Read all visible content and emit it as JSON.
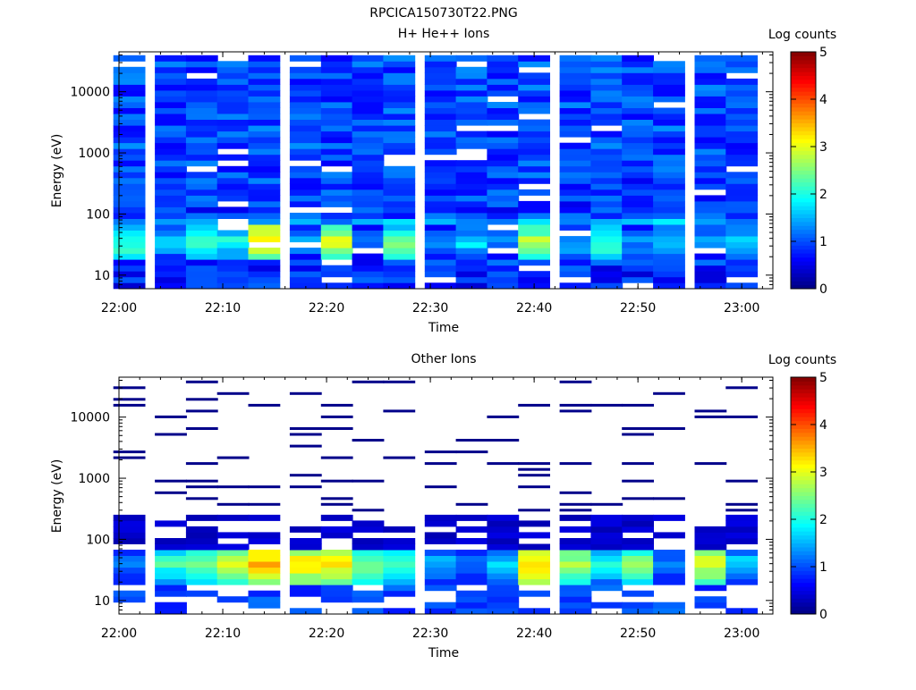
{
  "filename": "RPCICA150730T22.PNG",
  "chart_data": [
    {
      "type": "heatmap",
      "title": "H+ He++ Ions",
      "xlabel": "Time",
      "ylabel": "Energy (eV)",
      "colorbar_label": "Log counts",
      "yscale": "log",
      "ylim": [
        6,
        45000
      ],
      "xlim": [
        "22:00",
        "23:03"
      ],
      "xticks": [
        "22:00",
        "22:10",
        "22:20",
        "22:30",
        "22:40",
        "22:50",
        "23:00"
      ],
      "yticks": [
        "10",
        "100",
        "1000",
        "10000"
      ],
      "colorbar_range": [
        0,
        5
      ],
      "colorbar_ticks": [
        "0",
        "1",
        "2",
        "3",
        "4",
        "5"
      ],
      "time_columns": [
        "22:01",
        "22:05",
        "22:08",
        "22:11",
        "22:14",
        "22:18",
        "22:21",
        "22:24",
        "22:27",
        "22:31",
        "22:34",
        "22:37",
        "22:40",
        "22:44",
        "22:47",
        "22:50",
        "22:53",
        "22:57",
        "23:00"
      ],
      "energy_profile": [
        {
          "energy_eV": 10,
          "log_counts": 0.8
        },
        {
          "energy_eV": 18,
          "log_counts": 0.9
        },
        {
          "energy_eV": 30,
          "log_counts": 2.3
        },
        {
          "energy_eV": 45,
          "log_counts": 2.6
        },
        {
          "energy_eV": 100,
          "log_counts": 0.9
        },
        {
          "energy_eV": 1000,
          "log_counts": 1.0
        },
        {
          "energy_eV": 10000,
          "log_counts": 1.0
        }
      ],
      "peak_intensity_by_column": [
        2.3,
        1.6,
        2.2,
        2.0,
        3.2,
        1.4,
        3.0,
        1.4,
        2.4,
        1.4,
        1.8,
        1.4,
        2.8,
        1.6,
        2.2,
        1.4,
        1.8,
        1.4,
        1.8
      ]
    },
    {
      "type": "heatmap",
      "title": "Other Ions",
      "xlabel": "Time",
      "ylabel": "Energy (eV)",
      "colorbar_label": "Log counts",
      "yscale": "log",
      "ylim": [
        6,
        45000
      ],
      "xlim": [
        "22:00",
        "23:03"
      ],
      "xticks": [
        "22:00",
        "22:10",
        "22:20",
        "22:30",
        "22:40",
        "22:50",
        "23:00"
      ],
      "yticks": [
        "10",
        "100",
        "1000",
        "10000"
      ],
      "colorbar_range": [
        0,
        5
      ],
      "colorbar_ticks": [
        "0",
        "1",
        "2",
        "3",
        "4",
        "5"
      ],
      "time_columns": [
        "22:01",
        "22:05",
        "22:08",
        "22:11",
        "22:14",
        "22:18",
        "22:21",
        "22:24",
        "22:27",
        "22:31",
        "22:34",
        "22:37",
        "22:40",
        "22:44",
        "22:47",
        "22:50",
        "22:53",
        "22:57",
        "23:00"
      ],
      "energy_profile": [
        {
          "energy_eV": 10,
          "log_counts": 0.3
        },
        {
          "energy_eV": 30,
          "log_counts": 2.0
        },
        {
          "energy_eV": 45,
          "log_counts": 3.0
        },
        {
          "energy_eV": 100,
          "log_counts": 0.2
        },
        {
          "energy_eV": 1000,
          "log_counts": 0.0
        }
      ],
      "peak_intensity_by_column": [
        1.4,
        2.2,
        2.4,
        3.0,
        3.5,
        3.3,
        3.3,
        2.6,
        2.4,
        1.6,
        1.2,
        1.8,
        3.4,
        2.8,
        2.0,
        2.6,
        1.4,
        3.0,
        1.8
      ]
    }
  ]
}
